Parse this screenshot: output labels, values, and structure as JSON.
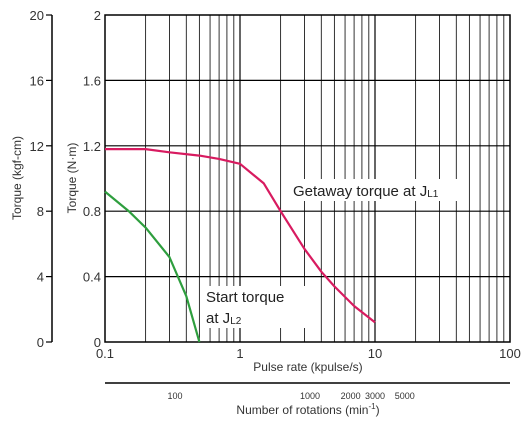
{
  "chart_data": {
    "type": "line",
    "x_scale": "log",
    "xlim": [
      0.1,
      100
    ],
    "xlabel": "Pulse rate (kpulse/s)",
    "x_ticks": [
      "0.1",
      "1",
      "10",
      "100"
    ],
    "ylabel_left_outer": "Torque (kgf-cm)",
    "ylim_left_outer": [
      0,
      20
    ],
    "y_ticks_left_outer": [
      "0",
      "4",
      "8",
      "12",
      "16",
      "20"
    ],
    "ylabel_left_inner": "Torque (N·m)",
    "ylim_left_inner": [
      0,
      2
    ],
    "y_ticks_left_inner": [
      "0",
      "0.4",
      "0.8",
      "1.2",
      "1.6",
      "2"
    ],
    "grid": true,
    "secondary_x_axis": {
      "label": "Number of rotations (min",
      "label_superscript": "-1",
      "label_close": ")",
      "ticks": [
        {
          "label": "100",
          "pulse_rate": 0.33
        },
        {
          "label": "1000",
          "pulse_rate": 3.3
        },
        {
          "label": "2000",
          "pulse_rate": 6.6
        },
        {
          "label": "3000",
          "pulse_rate": 10
        },
        {
          "label": "5000",
          "pulse_rate": 16.6
        }
      ]
    },
    "series": [
      {
        "name": "Getaway torque at JL1",
        "label_main": "Getaway torque at J",
        "label_sub": "L1",
        "color": "#d81b60",
        "x": [
          0.1,
          0.2,
          0.3,
          0.5,
          0.7,
          1.0,
          1.5,
          2.0,
          3.0,
          4.0,
          5.0,
          7.0,
          10.0
        ],
        "y": [
          1.18,
          1.18,
          1.16,
          1.14,
          1.12,
          1.09,
          0.97,
          0.8,
          0.57,
          0.43,
          0.34,
          0.22,
          0.12
        ]
      },
      {
        "name": "Start torque at JL2",
        "label_main": "Start torque",
        "label_line2": "at J",
        "label_sub": "L2",
        "color": "#2e9e3e",
        "x": [
          0.1,
          0.15,
          0.2,
          0.3,
          0.4,
          0.5
        ],
        "y": [
          0.92,
          0.8,
          0.7,
          0.52,
          0.28,
          0.0
        ]
      }
    ]
  }
}
